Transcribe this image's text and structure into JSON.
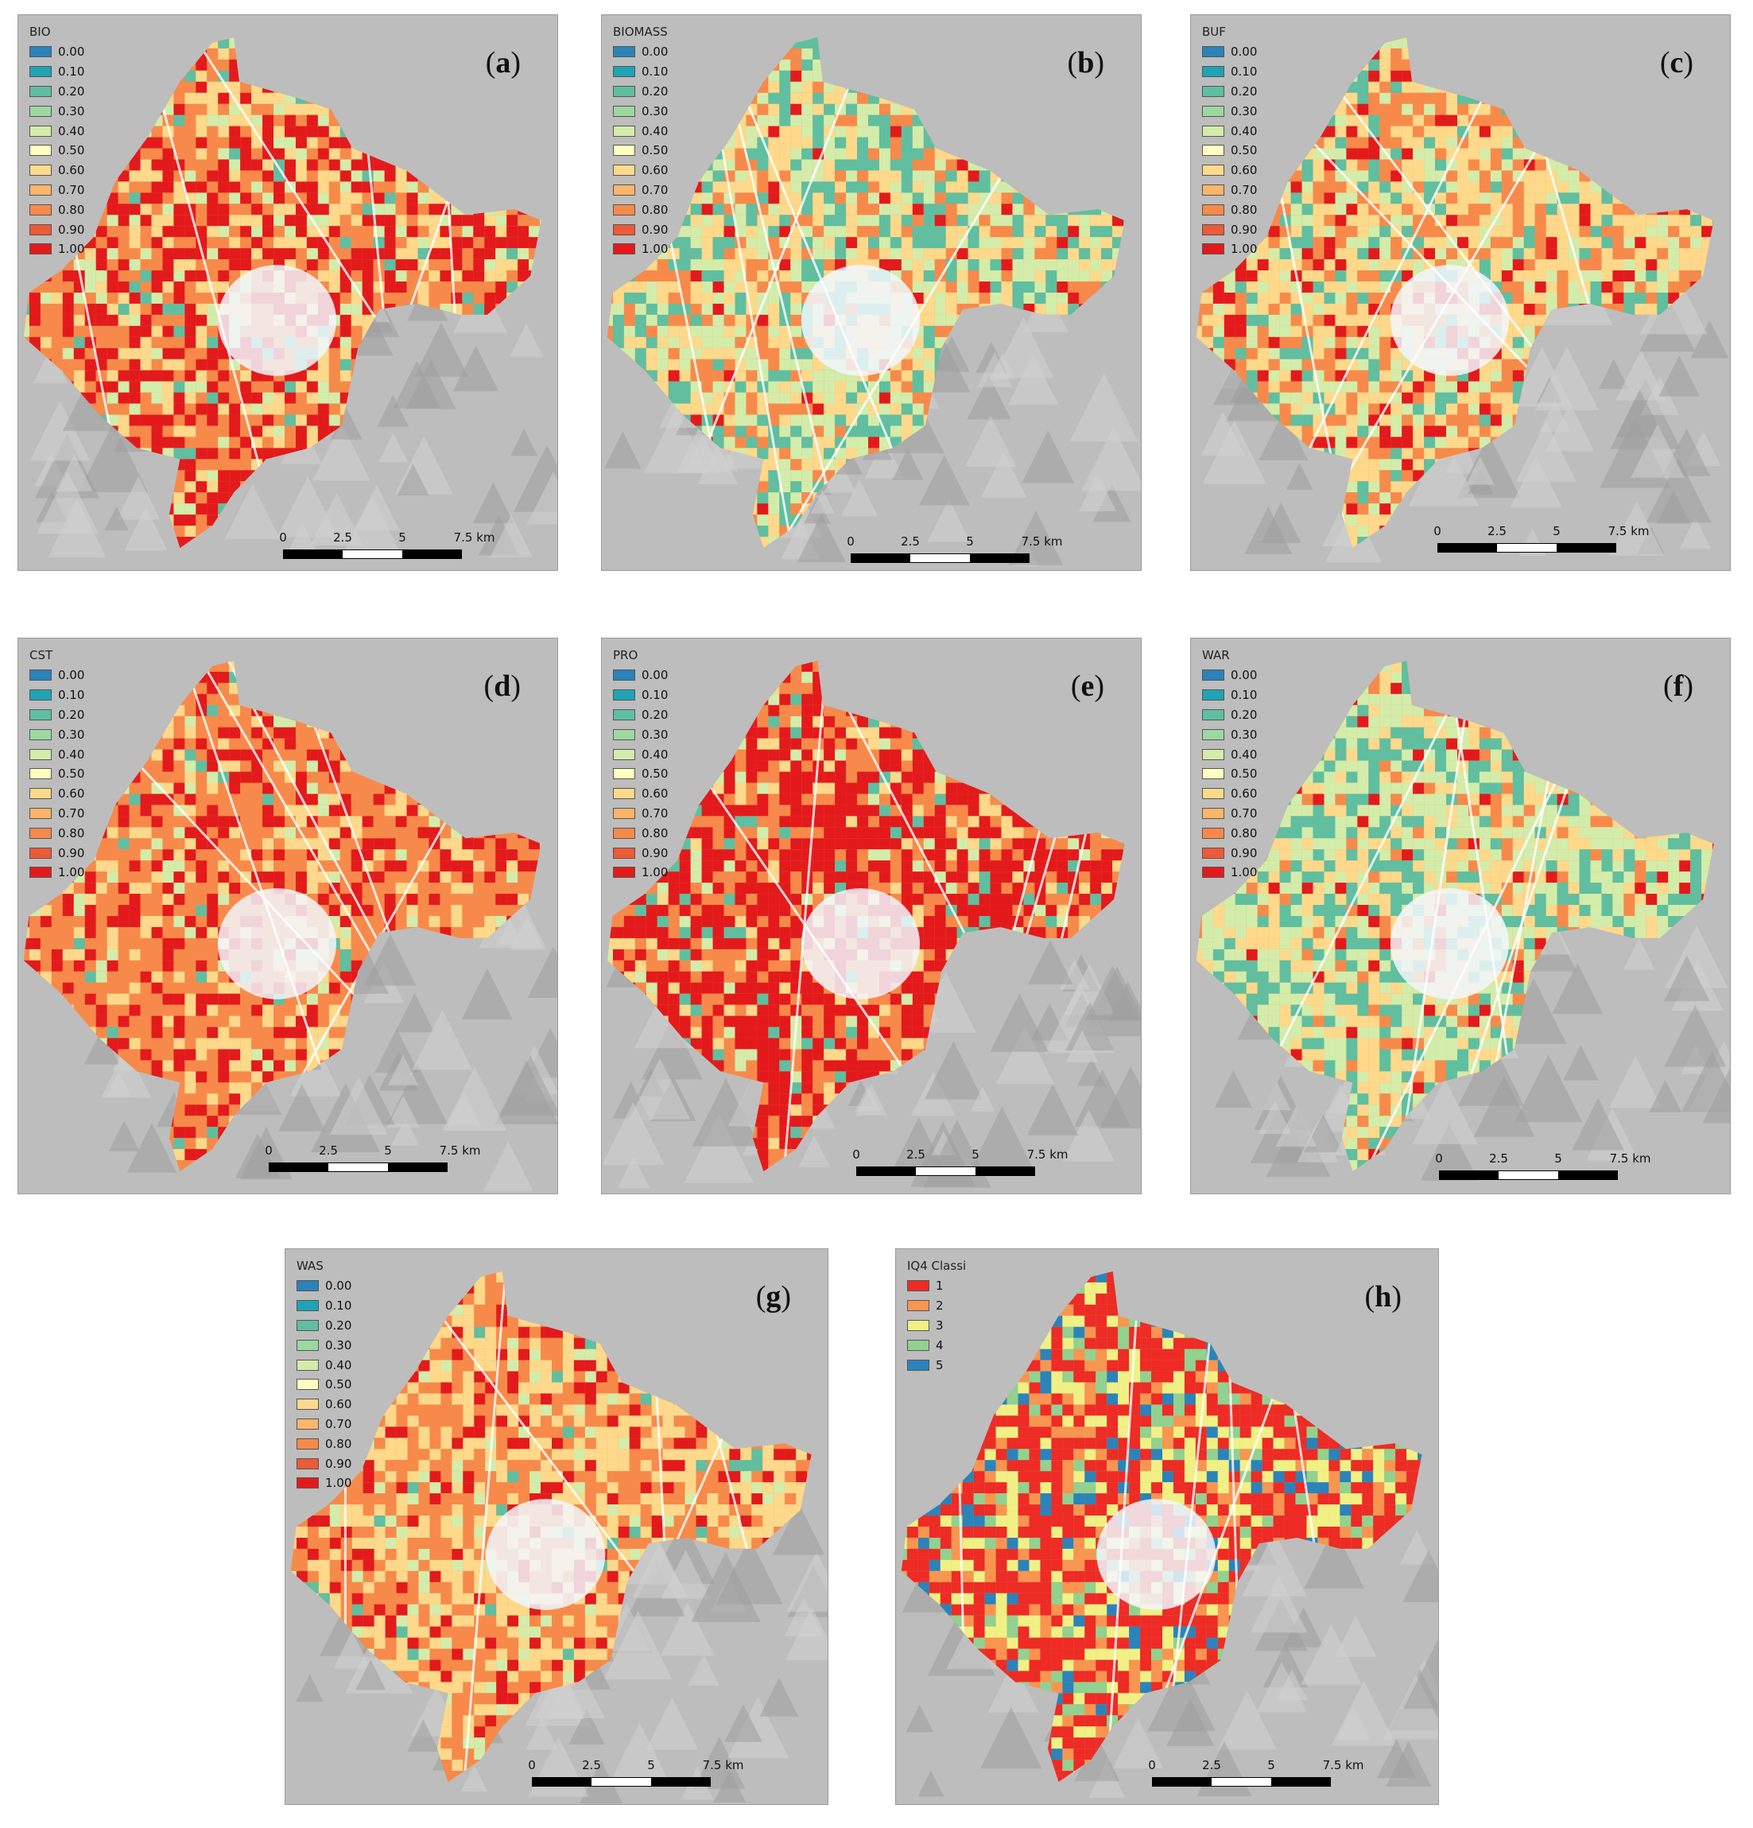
{
  "legend_colors": [
    "#2b83ba",
    "#20a3b3",
    "#5fbfa0",
    "#9dd8a0",
    "#d3ecaa",
    "#ffffbf",
    "#fed98b",
    "#fdb56a",
    "#f78a4b",
    "#ec5a36",
    "#e31a1c"
  ],
  "class_colors": [
    "#ee2b25",
    "#f99550",
    "#f1f085",
    "#92d18f",
    "#2b83ba"
  ],
  "panels": [
    {
      "id": "a",
      "title": "BIO",
      "label": "a",
      "mix": [
        0.05,
        0.1,
        0.2,
        0.3,
        0.35
      ]
    },
    {
      "id": "b",
      "title": "BIOMASS",
      "label": "b",
      "mix": [
        0.25,
        0.3,
        0.25,
        0.15,
        0.05
      ]
    },
    {
      "id": "c",
      "title": "BUF",
      "label": "c",
      "mix": [
        0.12,
        0.2,
        0.33,
        0.25,
        0.1
      ]
    },
    {
      "id": "d",
      "title": "CST",
      "label": "d",
      "mix": [
        0.02,
        0.05,
        0.18,
        0.5,
        0.25
      ]
    },
    {
      "id": "e",
      "title": "PRO",
      "label": "e",
      "mix": [
        0.05,
        0.05,
        0.1,
        0.3,
        0.5
      ]
    },
    {
      "id": "f",
      "title": "WAR",
      "label": "f",
      "mix": [
        0.25,
        0.35,
        0.25,
        0.1,
        0.05
      ]
    },
    {
      "id": "g",
      "title": "WAS",
      "label": "g",
      "mix": [
        0.02,
        0.08,
        0.35,
        0.4,
        0.15
      ]
    }
  ],
  "legend_values": [
    "0.00",
    "0.10",
    "0.20",
    "0.30",
    "0.40",
    "0.50",
    "0.60",
    "0.70",
    "0.80",
    "0.90",
    "1.00"
  ],
  "classes_panel": {
    "id": "h",
    "title": "IQ4 Classi",
    "label": "h",
    "values": [
      "1",
      "2",
      "3",
      "4",
      "5"
    ],
    "mix": [
      0.45,
      0.15,
      0.2,
      0.12,
      0.08
    ]
  },
  "scalebar": {
    "ticks": [
      "0",
      "2.5",
      "5",
      "7.5 km"
    ]
  }
}
